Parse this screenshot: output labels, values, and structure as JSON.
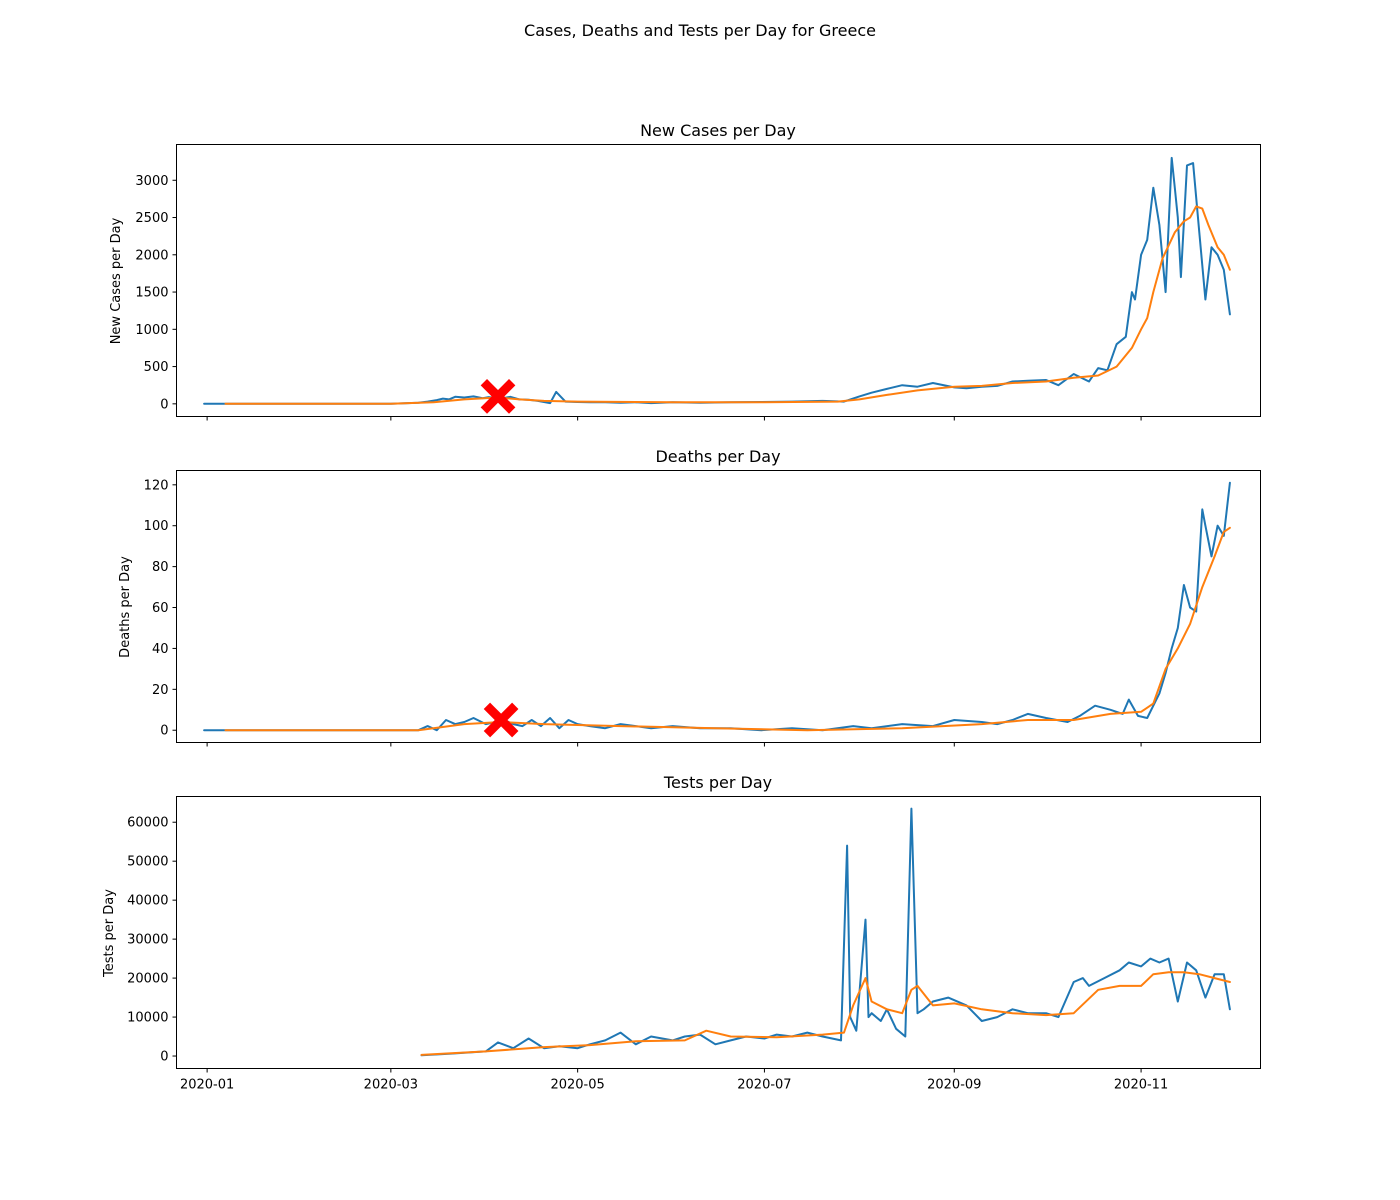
{
  "figure": {
    "suptitle": "Cases, Deaths and Tests per Day for Greece"
  },
  "chart_data": [
    {
      "type": "line",
      "title": "New Cases per Day",
      "xlabel": "",
      "ylabel": "New Cases per Day",
      "xlim": [
        "2019-12-22",
        "2020-12-10"
      ],
      "ylim": [
        -170,
        3480
      ],
      "yticks": [
        0,
        500,
        1000,
        1500,
        2000,
        2500,
        3000
      ],
      "xticks": [],
      "grid": false,
      "colors": [
        "#1f77b4",
        "#ff7f0e"
      ],
      "marker": {
        "x": "2020-04-05",
        "y": 100,
        "color": "#ff0000",
        "symbol": "X"
      },
      "series": [
        {
          "x": [
            "2019-12-31",
            "2020-02-20",
            "2020-03-01",
            "2020-03-10",
            "2020-03-13",
            "2020-03-16",
            "2020-03-18",
            "2020-03-20",
            "2020-03-22",
            "2020-03-25",
            "2020-03-28",
            "2020-03-31",
            "2020-04-02",
            "2020-04-04",
            "2020-04-06",
            "2020-04-09",
            "2020-04-12",
            "2020-04-15",
            "2020-04-18",
            "2020-04-20",
            "2020-04-22",
            "2020-04-24",
            "2020-04-27",
            "2020-05-01",
            "2020-05-05",
            "2020-05-10",
            "2020-05-15",
            "2020-05-20",
            "2020-05-25",
            "2020-06-01",
            "2020-06-10",
            "2020-06-20",
            "2020-06-30",
            "2020-07-10",
            "2020-07-20",
            "2020-07-27",
            "2020-08-01",
            "2020-08-05",
            "2020-08-10",
            "2020-08-15",
            "2020-08-20",
            "2020-08-25",
            "2020-09-01",
            "2020-09-05",
            "2020-09-10",
            "2020-09-15",
            "2020-09-20",
            "2020-09-25",
            "2020-10-01",
            "2020-10-05",
            "2020-10-10",
            "2020-10-15",
            "2020-10-18",
            "2020-10-21",
            "2020-10-24",
            "2020-10-27",
            "2020-10-29",
            "2020-10-30",
            "2020-11-01",
            "2020-11-03",
            "2020-11-05",
            "2020-11-07",
            "2020-11-09",
            "2020-11-11",
            "2020-11-12",
            "2020-11-13",
            "2020-11-14",
            "2020-11-16",
            "2020-11-18",
            "2020-11-20",
            "2020-11-22",
            "2020-11-24",
            "2020-11-26",
            "2020-11-28",
            "2020-11-30"
          ],
          "y": [
            0,
            0,
            0,
            15,
            30,
            50,
            70,
            60,
            95,
            85,
            100,
            75,
            90,
            80,
            70,
            95,
            60,
            55,
            40,
            25,
            10,
            160,
            30,
            25,
            20,
            20,
            15,
            20,
            10,
            20,
            15,
            20,
            25,
            30,
            40,
            30,
            100,
            150,
            200,
            250,
            230,
            280,
            220,
            210,
            230,
            240,
            300,
            310,
            320,
            250,
            400,
            300,
            480,
            450,
            800,
            900,
            1500,
            1400,
            2000,
            2200,
            2900,
            2400,
            1500,
            3300,
            2900,
            2500,
            1700,
            3200,
            3230,
            2300,
            1400,
            2100,
            2000,
            1800,
            1200
          ]
        },
        {
          "x": [
            "2020-01-07",
            "2020-03-01",
            "2020-03-15",
            "2020-03-25",
            "2020-04-05",
            "2020-04-12",
            "2020-04-20",
            "2020-05-01",
            "2020-06-01",
            "2020-07-01",
            "2020-07-25",
            "2020-08-01",
            "2020-08-10",
            "2020-08-20",
            "2020-09-01",
            "2020-09-10",
            "2020-09-20",
            "2020-10-01",
            "2020-10-10",
            "2020-10-18",
            "2020-10-24",
            "2020-10-29",
            "2020-11-01",
            "2020-11-03",
            "2020-11-05",
            "2020-11-08",
            "2020-11-12",
            "2020-11-15",
            "2020-11-17",
            "2020-11-19",
            "2020-11-21",
            "2020-11-23",
            "2020-11-26",
            "2020-11-28",
            "2020-11-30"
          ],
          "y": [
            0,
            0,
            20,
            60,
            85,
            60,
            40,
            30,
            20,
            20,
            30,
            60,
            120,
            180,
            230,
            240,
            280,
            300,
            350,
            380,
            500,
            750,
            1000,
            1150,
            1500,
            1950,
            2300,
            2450,
            2500,
            2650,
            2620,
            2400,
            2100,
            2000,
            1800
          ]
        }
      ]
    },
    {
      "type": "line",
      "title": "Deaths per Day",
      "xlabel": "",
      "ylabel": "Deaths per Day",
      "xlim": [
        "2019-12-22",
        "2020-12-10"
      ],
      "ylim": [
        -6,
        127
      ],
      "yticks": [
        0,
        20,
        40,
        60,
        80,
        100,
        120
      ],
      "xticks": [],
      "grid": false,
      "colors": [
        "#1f77b4",
        "#ff7f0e"
      ],
      "marker": {
        "x": "2020-04-06",
        "y": 5,
        "color": "#ff0000",
        "symbol": "X"
      },
      "series": [
        {
          "x": [
            "2019-12-31",
            "2020-03-10",
            "2020-03-13",
            "2020-03-16",
            "2020-03-19",
            "2020-03-22",
            "2020-03-25",
            "2020-03-28",
            "2020-04-01",
            "2020-04-04",
            "2020-04-07",
            "2020-04-10",
            "2020-04-13",
            "2020-04-16",
            "2020-04-19",
            "2020-04-22",
            "2020-04-25",
            "2020-04-28",
            "2020-05-01",
            "2020-05-05",
            "2020-05-10",
            "2020-05-15",
            "2020-05-20",
            "2020-05-25",
            "2020-06-01",
            "2020-06-10",
            "2020-06-20",
            "2020-06-30",
            "2020-07-10",
            "2020-07-20",
            "2020-07-30",
            "2020-08-05",
            "2020-08-15",
            "2020-08-25",
            "2020-09-01",
            "2020-09-10",
            "2020-09-15",
            "2020-09-20",
            "2020-09-25",
            "2020-10-01",
            "2020-10-08",
            "2020-10-12",
            "2020-10-17",
            "2020-10-22",
            "2020-10-26",
            "2020-10-28",
            "2020-10-31",
            "2020-11-03",
            "2020-11-05",
            "2020-11-07",
            "2020-11-09",
            "2020-11-11",
            "2020-11-13",
            "2020-11-15",
            "2020-11-17",
            "2020-11-19",
            "2020-11-21",
            "2020-11-22",
            "2020-11-24",
            "2020-11-26",
            "2020-11-28",
            "2020-11-30"
          ],
          "y": [
            0,
            0,
            2,
            0,
            5,
            3,
            4,
            6,
            3,
            4,
            5,
            3,
            2,
            5,
            2,
            6,
            1,
            5,
            3,
            2,
            1,
            3,
            2,
            1,
            2,
            1,
            1,
            0,
            1,
            0,
            2,
            1,
            3,
            2,
            5,
            4,
            3,
            5,
            8,
            6,
            4,
            7,
            12,
            10,
            8,
            15,
            7,
            6,
            12,
            18,
            28,
            40,
            50,
            71,
            60,
            58,
            108,
            100,
            85,
            100,
            95,
            121
          ]
        },
        {
          "x": [
            "2020-01-07",
            "2020-03-10",
            "2020-03-25",
            "2020-04-06",
            "2020-04-20",
            "2020-05-15",
            "2020-06-15",
            "2020-07-15",
            "2020-08-15",
            "2020-09-10",
            "2020-09-25",
            "2020-10-10",
            "2020-10-22",
            "2020-11-01",
            "2020-11-05",
            "2020-11-09",
            "2020-11-13",
            "2020-11-17",
            "2020-11-21",
            "2020-11-25",
            "2020-11-28",
            "2020-11-30"
          ],
          "y": [
            0,
            0,
            3,
            4,
            3,
            2,
            1,
            0,
            1,
            3,
            5,
            5,
            8,
            9,
            13,
            30,
            40,
            52,
            70,
            85,
            97,
            99
          ]
        }
      ]
    },
    {
      "type": "line",
      "title": "Tests per Day",
      "xlabel": "",
      "ylabel": "Tests per Day",
      "xlim": [
        "2019-12-22",
        "2020-12-10"
      ],
      "ylim": [
        -3200,
        66600
      ],
      "yticks": [
        0,
        10000,
        20000,
        30000,
        40000,
        50000,
        60000
      ],
      "xticks": [
        "2020-01",
        "2020-03",
        "2020-05",
        "2020-07",
        "2020-09",
        "2020-11"
      ],
      "grid": false,
      "colors": [
        "#1f77b4",
        "#ff7f0e"
      ],
      "series": [
        {
          "x": [
            "2020-03-11",
            "2020-03-20",
            "2020-04-01",
            "2020-04-05",
            "2020-04-10",
            "2020-04-15",
            "2020-04-20",
            "2020-04-25",
            "2020-05-01",
            "2020-05-05",
            "2020-05-10",
            "2020-05-15",
            "2020-05-20",
            "2020-05-25",
            "2020-06-01",
            "2020-06-05",
            "2020-06-10",
            "2020-06-15",
            "2020-06-20",
            "2020-06-25",
            "2020-07-01",
            "2020-07-05",
            "2020-07-10",
            "2020-07-15",
            "2020-07-20",
            "2020-07-26",
            "2020-07-28",
            "2020-07-29",
            "2020-07-31",
            "2020-08-03",
            "2020-08-04",
            "2020-08-05",
            "2020-08-08",
            "2020-08-10",
            "2020-08-13",
            "2020-08-16",
            "2020-08-18",
            "2020-08-20",
            "2020-08-22",
            "2020-08-25",
            "2020-08-30",
            "2020-09-05",
            "2020-09-10",
            "2020-09-15",
            "2020-09-20",
            "2020-09-25",
            "2020-10-01",
            "2020-10-05",
            "2020-10-10",
            "2020-10-13",
            "2020-10-15",
            "2020-10-20",
            "2020-10-25",
            "2020-10-28",
            "2020-11-01",
            "2020-11-04",
            "2020-11-07",
            "2020-11-10",
            "2020-11-13",
            "2020-11-16",
            "2020-11-19",
            "2020-11-22",
            "2020-11-25",
            "2020-11-28",
            "2020-11-30"
          ],
          "y": [
            200,
            600,
            1200,
            3500,
            2000,
            4500,
            2000,
            2500,
            2000,
            3000,
            4000,
            6000,
            3000,
            5000,
            4000,
            5000,
            5500,
            3000,
            4000,
            5000,
            4500,
            5500,
            5000,
            6000,
            5000,
            4000,
            54000,
            10000,
            6500,
            35000,
            10000,
            11000,
            9000,
            12000,
            7000,
            5000,
            63500,
            11000,
            12000,
            14000,
            15000,
            13000,
            9000,
            10000,
            12000,
            11000,
            11000,
            10000,
            19000,
            20000,
            18000,
            20000,
            22000,
            24000,
            23000,
            25000,
            24000,
            25000,
            14000,
            24000,
            22000,
            15000,
            21000,
            21000,
            12000
          ]
        },
        {
          "x": [
            "2020-03-11",
            "2020-04-01",
            "2020-04-20",
            "2020-05-05",
            "2020-05-20",
            "2020-06-05",
            "2020-06-12",
            "2020-06-20",
            "2020-07-05",
            "2020-07-20",
            "2020-07-27",
            "2020-07-30",
            "2020-08-03",
            "2020-08-05",
            "2020-08-10",
            "2020-08-15",
            "2020-08-18",
            "2020-08-20",
            "2020-08-25",
            "2020-09-01",
            "2020-09-10",
            "2020-09-20",
            "2020-10-01",
            "2020-10-10",
            "2020-10-18",
            "2020-10-25",
            "2020-11-01",
            "2020-11-05",
            "2020-11-10",
            "2020-11-15",
            "2020-11-20",
            "2020-11-25",
            "2020-11-30"
          ],
          "y": [
            300,
            1200,
            2300,
            2800,
            3800,
            4000,
            6500,
            5000,
            4800,
            5500,
            6000,
            13000,
            20000,
            14000,
            12000,
            11000,
            17000,
            18000,
            13000,
            13500,
            12000,
            11000,
            10500,
            11000,
            17000,
            18000,
            18000,
            21000,
            21500,
            21500,
            21000,
            20000,
            19000
          ]
        }
      ]
    }
  ]
}
